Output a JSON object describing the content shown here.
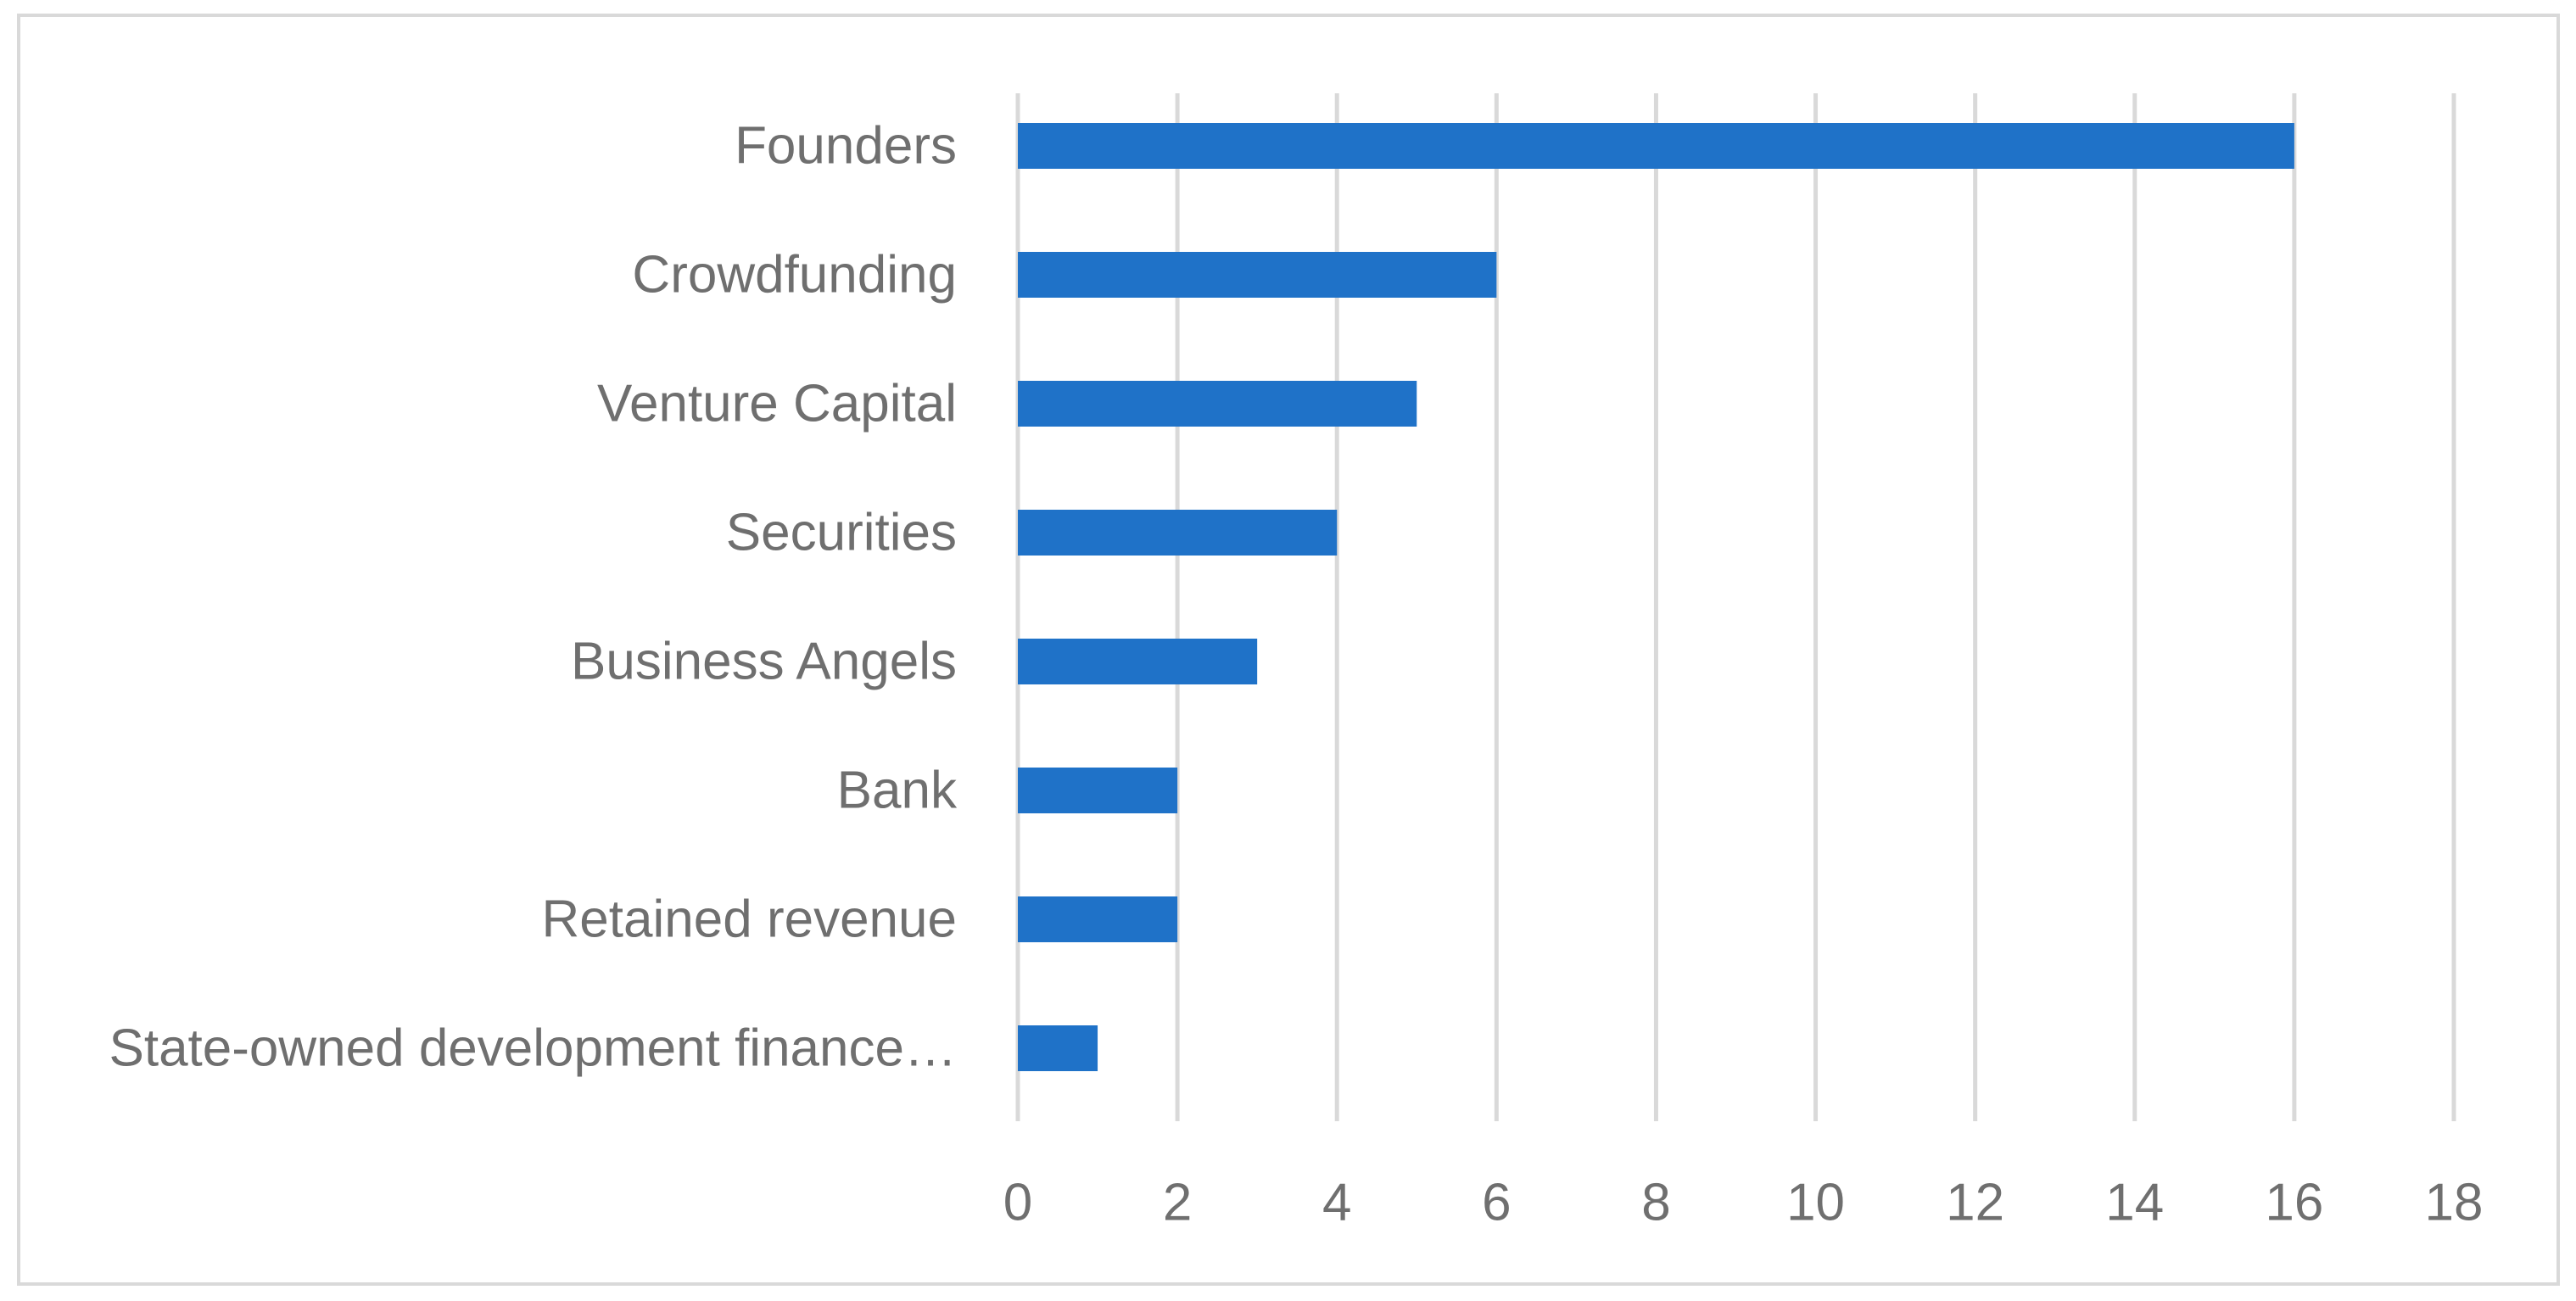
{
  "chart_data": {
    "type": "bar",
    "orientation": "horizontal",
    "categories": [
      "Founders",
      "Crowdfunding",
      "Venture Capital",
      "Securities",
      "Business Angels",
      "Bank",
      "Retained revenue",
      "State-owned development finance…"
    ],
    "values": [
      16,
      6,
      5,
      4,
      3,
      2,
      2,
      1
    ],
    "xlim": [
      0,
      18
    ],
    "xticks": [
      0,
      2,
      4,
      6,
      8,
      10,
      12,
      14,
      16,
      18
    ],
    "title": "",
    "xlabel": "",
    "ylabel": "",
    "grid": "vertical",
    "legend": "none",
    "colors": {
      "bar": "#1f72c8",
      "grid": "#d9d9d9",
      "text": "#6f6f6f",
      "border": "#d9d9d9"
    }
  }
}
